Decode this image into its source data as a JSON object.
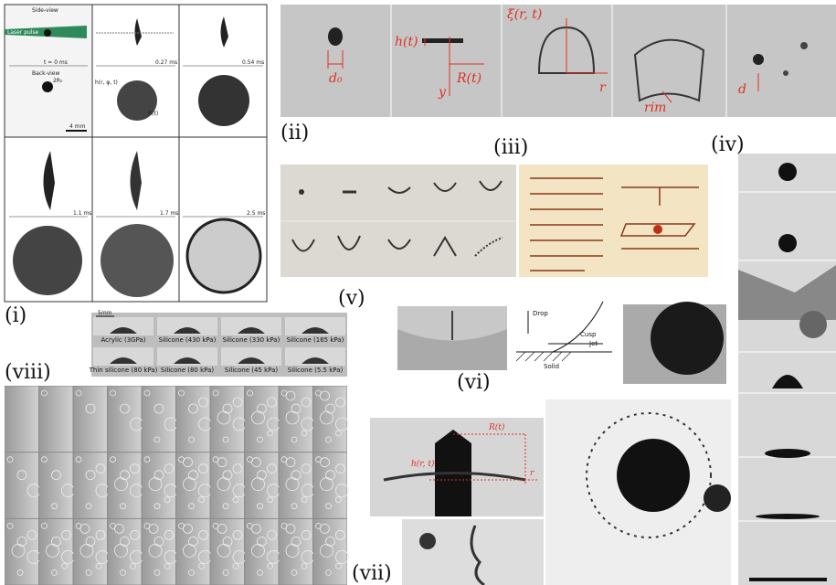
{
  "panels": {
    "i": {
      "label": "(i)",
      "side_view": "Side-view",
      "back_view": "Back-view",
      "laser": "Laser pulse",
      "times": [
        "t = 0 ms",
        "0.27 ms",
        "0.54 ms",
        "1.1 ms",
        "1.7 ms",
        "2.5 ms"
      ],
      "scale": "4 mm",
      "radius": "2R₀",
      "height": "h(r, φ, t)",
      "rim_radius": "R(t)"
    },
    "ii": {
      "label": "(ii)",
      "symbols": [
        "d₀",
        "h(t)",
        "R(t)",
        "y",
        "ξ(r, t)",
        "r",
        "rim",
        "d"
      ]
    },
    "iii": {
      "label": "(iii)"
    },
    "iv": {
      "label": "(iv)"
    },
    "v": {
      "label": "(v)",
      "scale": "5mm",
      "materials": [
        "Acrylic (3GPa)",
        "Silicone (430 kPa)",
        "Silicone (330 kPa)",
        "Silicone (165 kPa)",
        "Thin silicone (80 kPa)",
        "Silicone (80 kPa)",
        "Silicone (45 kPa)",
        "Silicone (5.5 kPa)"
      ]
    },
    "vi": {
      "label": "(vi)",
      "schematic": [
        "Drop",
        "Cusp",
        "Jet",
        "Solid"
      ]
    },
    "vii": {
      "label": "(vii)",
      "symbols": [
        "h(r, t)",
        "R(t)",
        "r"
      ]
    },
    "viii": {
      "label": "(viii)"
    }
  }
}
